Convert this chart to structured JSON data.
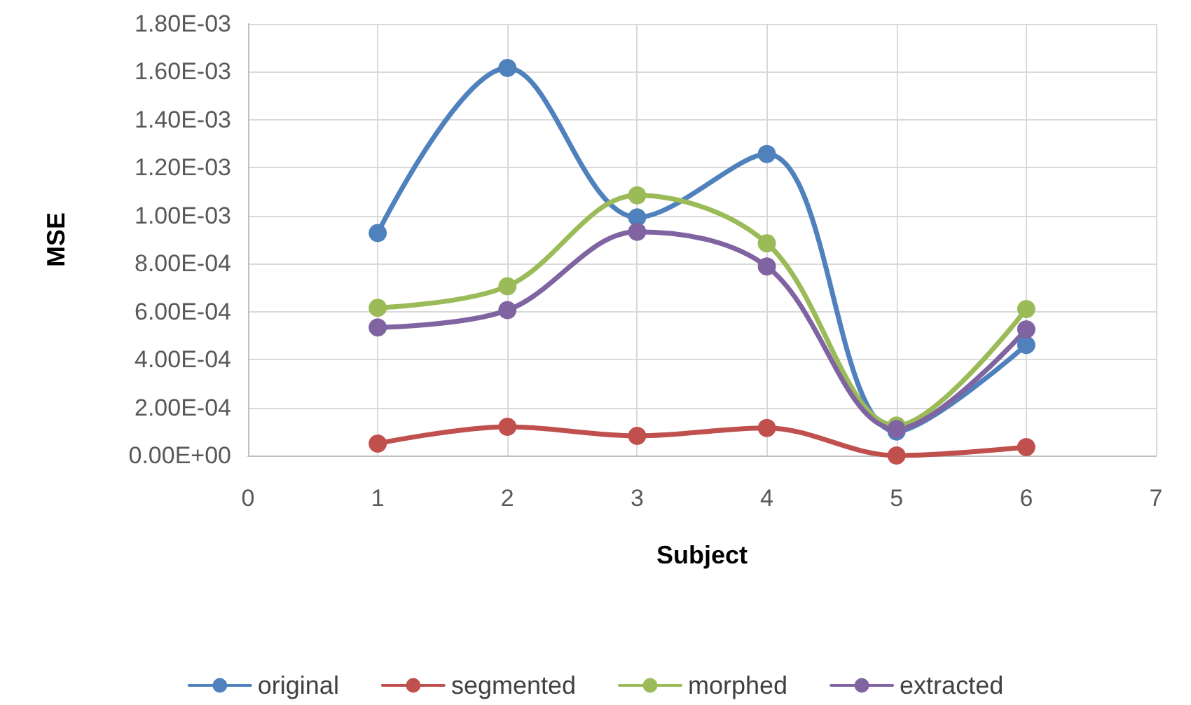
{
  "chart_data": {
    "type": "line",
    "xlabel": "Subject",
    "ylabel": "MSE",
    "x": [
      1,
      2,
      3,
      4,
      5,
      6
    ],
    "series": [
      {
        "name": "original",
        "color": "#4f81bd",
        "values": [
          0.000928,
          0.001616,
          0.000993,
          0.001257,
          0.0001,
          0.000461
        ]
      },
      {
        "name": "segmented",
        "color": "#c0504d",
        "values": [
          5e-05,
          0.00012,
          8.2e-05,
          0.000115,
          0.0,
          3.5e-05
        ]
      },
      {
        "name": "morphed",
        "color": "#9bbb59",
        "values": [
          0.000616,
          0.000706,
          0.001085,
          0.000885,
          0.000125,
          0.000611
        ]
      },
      {
        "name": "extracted",
        "color": "#8064a2",
        "values": [
          0.000534,
          0.000606,
          0.000933,
          0.000788,
          0.00011,
          0.000526
        ]
      }
    ],
    "xlim": [
      0,
      7
    ],
    "xticks": [
      0,
      1,
      2,
      3,
      4,
      5,
      6,
      7
    ],
    "ylim": [
      0,
      0.0018
    ],
    "yticks": [
      {
        "value": 0,
        "label": "0.00E+00"
      },
      {
        "value": 0.0002,
        "label": "2.00E-04"
      },
      {
        "value": 0.0004,
        "label": "4.00E-04"
      },
      {
        "value": 0.0006,
        "label": "6.00E-04"
      },
      {
        "value": 0.0008,
        "label": "8.00E-04"
      },
      {
        "value": 0.001,
        "label": "1.00E-03"
      },
      {
        "value": 0.0012,
        "label": "1.20E-03"
      },
      {
        "value": 0.0014,
        "label": "1.40E-03"
      },
      {
        "value": 0.0016,
        "label": "1.60E-03"
      },
      {
        "value": 0.0018,
        "label": "1.80E-03"
      }
    ],
    "grid": true,
    "legend": "bottom",
    "marker": "circle",
    "line_style": "solid"
  }
}
